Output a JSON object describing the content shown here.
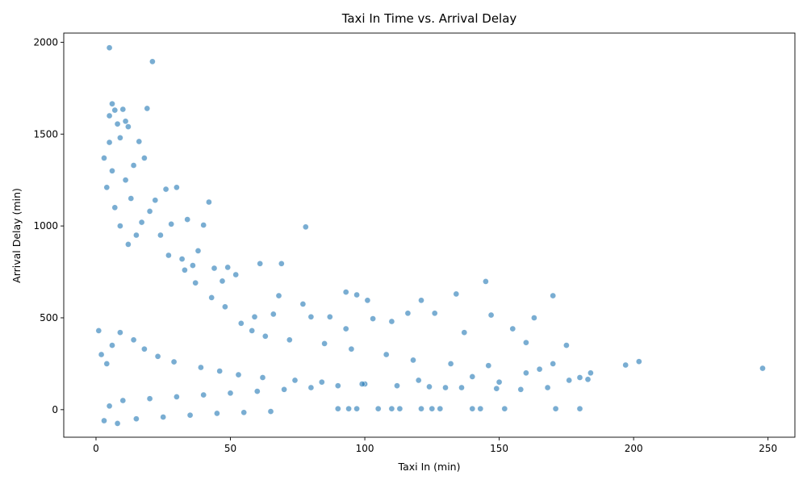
{
  "chart_data": {
    "type": "scatter",
    "title": "Taxi In Time vs. Arrival Delay",
    "xlabel": "Taxi In (min)",
    "ylabel": "Arrival Delay (min)",
    "xlim": [
      -12,
      260
    ],
    "ylim": [
      -150,
      2050
    ],
    "xticks": [
      0,
      50,
      100,
      150,
      200,
      250
    ],
    "yticks": [
      0,
      500,
      1000,
      1500,
      2000
    ],
    "grid": false,
    "legend": "none",
    "marker_color": "#1f77b4",
    "points": [
      [
        5,
        1970
      ],
      [
        21,
        1895
      ],
      [
        6,
        1665
      ],
      [
        19,
        1640
      ],
      [
        10,
        1635
      ],
      [
        7,
        1630
      ],
      [
        5,
        1600
      ],
      [
        11,
        1570
      ],
      [
        8,
        1555
      ],
      [
        12,
        1540
      ],
      [
        9,
        1480
      ],
      [
        16,
        1460
      ],
      [
        5,
        1455
      ],
      [
        18,
        1370
      ],
      [
        3,
        1370
      ],
      [
        14,
        1330
      ],
      [
        6,
        1300
      ],
      [
        26,
        1200
      ],
      [
        30,
        1210
      ],
      [
        4,
        1210
      ],
      [
        22,
        1140
      ],
      [
        42,
        1130
      ],
      [
        20,
        1080
      ],
      [
        34,
        1035
      ],
      [
        28,
        1010
      ],
      [
        40,
        1005
      ],
      [
        78,
        995
      ],
      [
        38,
        865
      ],
      [
        32,
        820
      ],
      [
        36,
        785
      ],
      [
        61,
        795
      ],
      [
        69,
        795
      ],
      [
        49,
        775
      ],
      [
        52,
        735
      ],
      [
        44,
        770
      ],
      [
        47,
        700
      ],
      [
        68,
        620
      ],
      [
        93,
        640
      ],
      [
        97,
        625
      ],
      [
        134,
        630
      ],
      [
        145,
        698
      ],
      [
        170,
        620
      ],
      [
        101,
        595
      ],
      [
        121,
        595
      ],
      [
        77,
        575
      ],
      [
        163,
        500
      ],
      [
        147,
        515
      ],
      [
        126,
        525
      ],
      [
        116,
        525
      ],
      [
        103,
        495
      ],
      [
        80,
        505
      ],
      [
        59,
        505
      ],
      [
        66,
        520
      ],
      [
        87,
        505
      ],
      [
        93,
        440
      ],
      [
        110,
        480
      ],
      [
        137,
        420
      ],
      [
        155,
        440
      ],
      [
        160,
        365
      ],
      [
        175,
        350
      ],
      [
        202,
        262
      ],
      [
        197,
        243
      ],
      [
        248,
        225
      ],
      [
        184,
        200
      ],
      [
        180,
        175
      ],
      [
        171,
        5
      ],
      [
        180,
        5
      ],
      [
        152,
        5
      ],
      [
        143,
        5
      ],
      [
        140,
        5
      ],
      [
        128,
        5
      ],
      [
        125,
        5
      ],
      [
        121,
        5
      ],
      [
        113,
        5
      ],
      [
        110,
        5
      ],
      [
        105,
        5
      ],
      [
        97,
        5
      ],
      [
        94,
        5
      ],
      [
        90,
        5
      ],
      [
        170,
        250
      ],
      [
        150,
        150
      ],
      [
        130,
        120
      ],
      [
        160,
        200
      ],
      [
        140,
        180
      ],
      [
        120,
        160
      ],
      [
        100,
        140
      ],
      [
        90,
        130
      ],
      [
        80,
        120
      ],
      [
        70,
        110
      ],
      [
        60,
        100
      ],
      [
        50,
        90
      ],
      [
        40,
        80
      ],
      [
        30,
        70
      ],
      [
        20,
        60
      ],
      [
        10,
        50
      ],
      [
        5,
        20
      ],
      [
        3,
        -60
      ],
      [
        8,
        -75
      ],
      [
        15,
        -50
      ],
      [
        25,
        -40
      ],
      [
        35,
        -30
      ],
      [
        45,
        -20
      ],
      [
        55,
        -15
      ],
      [
        65,
        -10
      ],
      [
        12,
        900
      ],
      [
        15,
        950
      ],
      [
        9,
        1000
      ],
      [
        7,
        1100
      ],
      [
        13,
        1150
      ],
      [
        11,
        1250
      ],
      [
        17,
        1020
      ],
      [
        24,
        950
      ],
      [
        27,
        840
      ],
      [
        33,
        760
      ],
      [
        37,
        690
      ],
      [
        43,
        610
      ],
      [
        48,
        560
      ],
      [
        54,
        470
      ],
      [
        58,
        430
      ],
      [
        63,
        400
      ],
      [
        72,
        380
      ],
      [
        85,
        360
      ],
      [
        95,
        330
      ],
      [
        108,
        300
      ],
      [
        118,
        270
      ],
      [
        132,
        250
      ],
      [
        146,
        240
      ],
      [
        165,
        220
      ],
      [
        1,
        430
      ],
      [
        2,
        300
      ],
      [
        4,
        250
      ],
      [
        6,
        350
      ],
      [
        9,
        420
      ],
      [
        14,
        380
      ],
      [
        18,
        330
      ],
      [
        23,
        290
      ],
      [
        29,
        260
      ],
      [
        39,
        230
      ],
      [
        46,
        210
      ],
      [
        53,
        190
      ],
      [
        62,
        175
      ],
      [
        74,
        160
      ],
      [
        84,
        150
      ],
      [
        99,
        140
      ],
      [
        112,
        130
      ],
      [
        124,
        125
      ],
      [
        136,
        120
      ],
      [
        149,
        115
      ],
      [
        158,
        110
      ],
      [
        168,
        120
      ],
      [
        176,
        160
      ],
      [
        183,
        165
      ]
    ]
  }
}
